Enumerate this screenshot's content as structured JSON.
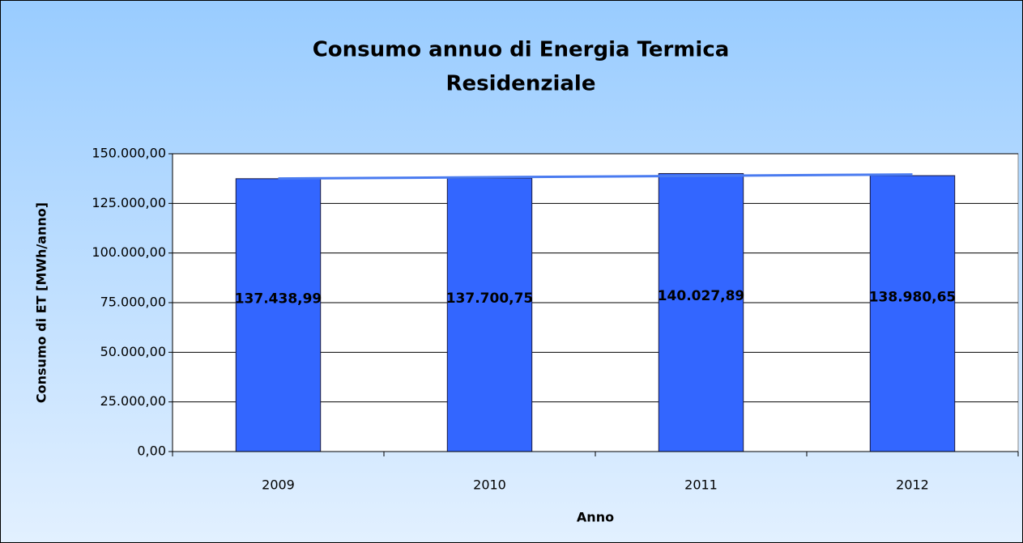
{
  "chart_data": {
    "type": "bar",
    "title": [
      "Consumo annuo di Energia Termica",
      "Residenziale"
    ],
    "x_label": "Anno",
    "y_label": "Consumo di ET [MWh/anno]",
    "categories": [
      "2009",
      "2010",
      "2011",
      "2012"
    ],
    "values": [
      137438.99,
      137700.75,
      140027.89,
      138980.65
    ],
    "value_labels": [
      "137.438,99",
      "137.700,75",
      "140.027,89",
      "138.980,65"
    ],
    "color": "#3366ff",
    "trendline": true,
    "trendline_color": "#4a7bf0",
    "ylim": [
      0,
      150000
    ],
    "yticks": [
      {
        "value": 0,
        "label": "0,00"
      },
      {
        "value": 25000,
        "label": "25.000,00"
      },
      {
        "value": 50000,
        "label": "50.000,00"
      },
      {
        "value": 75000,
        "label": "75.000,00"
      },
      {
        "value": 100000,
        "label": "100.000,00"
      },
      {
        "value": 125000,
        "label": "125.000,00"
      },
      {
        "value": 150000,
        "label": "150.000,00"
      }
    ],
    "grid": true
  }
}
